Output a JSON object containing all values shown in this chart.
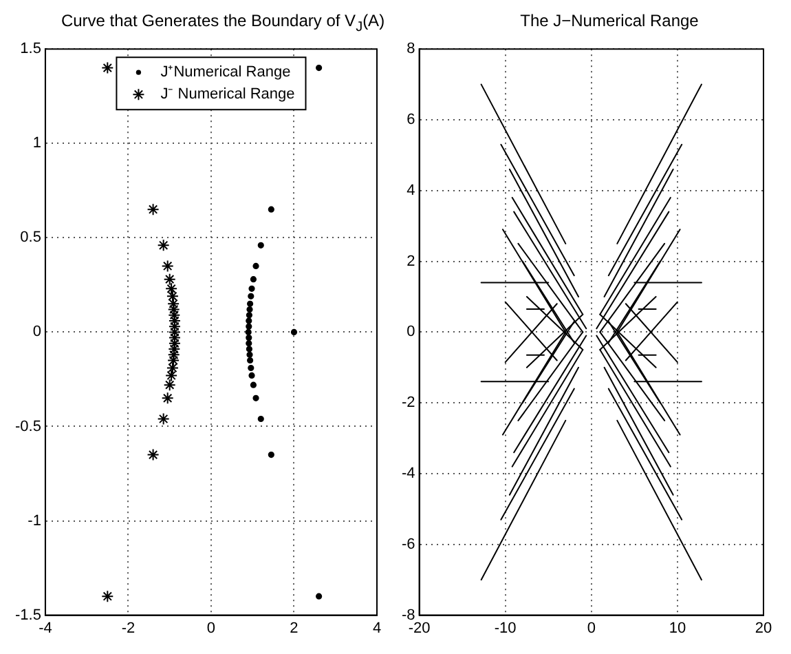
{
  "chart_data": [
    {
      "type": "scatter",
      "title": "Curve that Generates the Boundary of V$_{J}$(A)",
      "xlim": [
        -4,
        4
      ],
      "ylim": [
        -1.5,
        1.5
      ],
      "xticks": [
        -4,
        -2,
        0,
        2,
        4
      ],
      "yticks": [
        -1.5,
        -1,
        -0.5,
        0,
        0.5,
        1,
        1.5
      ],
      "grid": true,
      "legend": "top",
      "series": [
        {
          "name": "J⁺Numerical Range",
          "color": "#000000",
          "marker": "circle",
          "x": [
            2.6,
            1.45,
            1.2,
            1.08,
            1.02,
            0.98,
            0.96,
            0.94,
            0.93,
            0.92,
            0.91,
            0.91,
            0.9,
            2,
            0.91,
            0.91,
            0.92,
            0.93,
            0.94,
            0.96,
            0.98,
            1.02,
            1.08,
            1.2,
            1.45,
            2.6
          ],
          "values": [
            1.4,
            0.65,
            0.46,
            0.35,
            0.28,
            0.23,
            0.19,
            0.15,
            0.12,
            0.09,
            0.06,
            0.03,
            0,
            0,
            -0.03,
            -0.06,
            -0.09,
            -0.12,
            -0.15,
            -0.19,
            -0.23,
            -0.28,
            -0.35,
            -0.46,
            -0.65,
            -1.4
          ]
        },
        {
          "name": "J⁻ Numerical Range",
          "color": "#000000",
          "marker": "cross",
          "x": [
            -2.5,
            -1.4,
            -1.15,
            -1.05,
            -1.0,
            -0.96,
            -0.93,
            -0.91,
            -0.9,
            -0.89,
            -0.88,
            -0.88,
            -0.88,
            -0.88,
            -0.88,
            -0.89,
            -0.9,
            -0.91,
            -0.93,
            -0.96,
            -1.0,
            -1.05,
            -1.15,
            -1.4,
            -2.5
          ],
          "values": [
            1.4,
            0.65,
            0.46,
            0.35,
            0.28,
            0.23,
            0.19,
            0.15,
            0.12,
            0.09,
            0.06,
            0.03,
            0,
            -0.03,
            -0.06,
            -0.09,
            -0.12,
            -0.15,
            -0.19,
            -0.23,
            -0.28,
            -0.35,
            -0.46,
            -0.65,
            -1.4
          ]
        }
      ]
    },
    {
      "type": "line",
      "title": "The J−Numerical Range",
      "xlim": [
        -20,
        20
      ],
      "ylim": [
        -8,
        8
      ],
      "xticks": [
        -20,
        -10,
        0,
        10,
        20
      ],
      "yticks": [
        -8,
        -6,
        -4,
        -2,
        0,
        2,
        4,
        6,
        8
      ],
      "grid": true,
      "marker": "none",
      "line_style": "solid",
      "series": [
        {
          "color": "#000000",
          "x": [
            -12.8,
            -3,
            null,
            -10.5,
            -2,
            null,
            -9.5,
            -1.5,
            null,
            -9.2,
            -1,
            null,
            -9,
            -0.6,
            null,
            -10.3,
            -3,
            null,
            -8.5,
            -1,
            null,
            -8,
            -2,
            null,
            -12.8,
            -5,
            null,
            -7.5,
            -1,
            null,
            -10,
            -4,
            null,
            -7.5,
            -5.5
          ],
          "values": [
            7,
            2.5,
            null,
            5.3,
            1.6,
            null,
            4.6,
            1,
            null,
            3.8,
            0.5,
            null,
            3.4,
            0.1,
            null,
            2.9,
            0,
            null,
            2.5,
            0,
            null,
            2,
            -0.3,
            null,
            1.4,
            1.4,
            null,
            1,
            -0.5,
            null,
            0.85,
            -0.8,
            null,
            0.65,
            0.65
          ]
        },
        {
          "color": "#000000",
          "x": [
            -12.8,
            -3,
            null,
            -10.5,
            -2,
            null,
            -9.5,
            -1.5,
            null,
            -9.2,
            -1,
            null,
            -9,
            -0.6,
            null,
            -10.3,
            -3,
            null,
            -8.5,
            -1,
            null,
            -8,
            -2,
            null,
            -12.8,
            -5,
            null,
            -7.5,
            -1,
            null,
            -10,
            -4,
            null,
            -7.5,
            -5.5
          ],
          "values": [
            -7,
            -2.5,
            null,
            -5.3,
            -1.6,
            null,
            -4.6,
            -1,
            null,
            -3.8,
            -0.5,
            null,
            -3.4,
            -0.1,
            null,
            -2.9,
            0,
            null,
            -2.5,
            0,
            null,
            -2,
            0.3,
            null,
            -1.4,
            -1.4,
            null,
            -1,
            0.5,
            null,
            -0.85,
            0.8,
            null,
            -0.65,
            -0.65
          ]
        },
        {
          "color": "#000000",
          "x": [
            12.8,
            3,
            null,
            10.5,
            2,
            null,
            9.5,
            1.5,
            null,
            9.2,
            1,
            null,
            9,
            0.6,
            null,
            10.3,
            3,
            null,
            8.5,
            1,
            null,
            8,
            2,
            null,
            12.8,
            5,
            null,
            7.5,
            1,
            null,
            10,
            4,
            null,
            7.5,
            5.5
          ],
          "values": [
            7,
            2.5,
            null,
            5.3,
            1.6,
            null,
            4.6,
            1,
            null,
            3.8,
            0.5,
            null,
            3.4,
            0.1,
            null,
            2.9,
            0,
            null,
            2.5,
            0,
            null,
            2,
            -0.3,
            null,
            1.4,
            1.4,
            null,
            1,
            -0.5,
            null,
            0.85,
            -0.8,
            null,
            0.65,
            0.65
          ]
        },
        {
          "color": "#000000",
          "x": [
            12.8,
            3,
            null,
            10.5,
            2,
            null,
            9.5,
            1.5,
            null,
            9.2,
            1,
            null,
            9,
            0.6,
            null,
            10.3,
            3,
            null,
            8.5,
            1,
            null,
            8,
            2,
            null,
            12.8,
            5,
            null,
            7.5,
            1,
            null,
            10,
            4,
            null,
            7.5,
            5.5
          ],
          "values": [
            -7,
            -2.5,
            null,
            -5.3,
            -1.6,
            null,
            -4.6,
            -1,
            null,
            -3.8,
            -0.5,
            null,
            -3.4,
            -0.1,
            null,
            -2.9,
            0,
            null,
            -2.5,
            0,
            null,
            -2,
            0.3,
            null,
            -1.4,
            -1.4,
            null,
            -1,
            0.5,
            null,
            -0.85,
            0.8,
            null,
            -0.65,
            -0.65
          ]
        }
      ]
    }
  ]
}
